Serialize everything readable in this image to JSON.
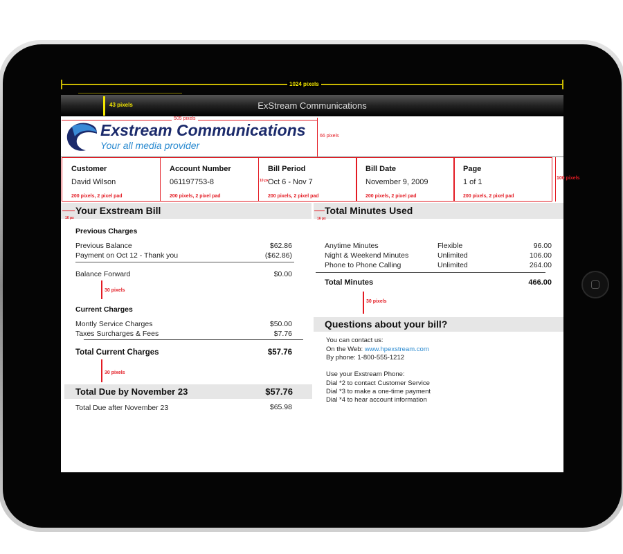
{
  "app_title": "ExStream Communications",
  "logo": {
    "name": "Exstream Communications",
    "tagline": "Your all media provider"
  },
  "annotations": {
    "width": "1024 pixels",
    "titlebar_height": "43 pixels",
    "logo_width": "505 pixels",
    "logo_height": "66 pixels",
    "box_spec": "200 pixels, 2 pixel pad",
    "spacing": "30 pixels",
    "padding": "16 px",
    "pad10": "10 px",
    "right_box": "100 pixels"
  },
  "info": [
    {
      "label": "Customer",
      "value": "David Wilson"
    },
    {
      "label": "Account Number",
      "value": "061197753-8"
    },
    {
      "label": "Bill Period",
      "value": "Oct 6 - Nov 7"
    },
    {
      "label": "Bill Date",
      "value": "November 9, 2009"
    },
    {
      "label": "Page",
      "value": "1 of 1"
    }
  ],
  "bill": {
    "title": "Your Exstream Bill",
    "previous_heading": "Previous Charges",
    "previous": [
      {
        "label": "Previous Balance",
        "amount": "$62.86"
      },
      {
        "label": "Payment on Oct 12 - Thank you",
        "amount": "($62.86)"
      }
    ],
    "balance_forward": {
      "label": "Balance Forward",
      "amount": "$0.00"
    },
    "current_heading": "Current Charges",
    "current": [
      {
        "label": "Montly Service Charges",
        "amount": "$50.00"
      },
      {
        "label": "Taxes Surcharges & Fees",
        "amount": "$7.76"
      }
    ],
    "total_current": {
      "label": "Total Current Charges",
      "amount": "$57.76"
    },
    "total_due": {
      "label": "Total Due by November 23",
      "amount": "$57.76"
    },
    "total_after": {
      "label": "Total Due after November 23",
      "amount": "$65.98"
    }
  },
  "minutes": {
    "title": "Total Minutes Used",
    "rows": [
      {
        "label": "Anytime Minutes",
        "plan": "Flexible",
        "value": "96.00"
      },
      {
        "label": "Night & Weekend Minutes",
        "plan": "Unlimited",
        "value": "106.00"
      },
      {
        "label": "Phone to Phone Calling",
        "plan": "Unlimited",
        "value": "264.00"
      }
    ],
    "total": {
      "label": "Total Minutes",
      "value": "466.00"
    }
  },
  "questions": {
    "title": "Questions about your bill?",
    "contact": "You can contact us:",
    "web_label": "On the Web:",
    "web_url": "www.hpexstream.com",
    "phone": "By phone: 1-800-555-1212",
    "use_phone": "Use your Exstream Phone:",
    "dial": [
      "Dial *2 to contact Customer Service",
      "Dial *3 to make a one-time payment",
      "Dial *4 to hear account information"
    ]
  },
  "colors": {
    "annotation": "#e31b23",
    "measure": "#f2e600",
    "brand_navy": "#1b2a6b",
    "link": "#2a8ad0"
  }
}
